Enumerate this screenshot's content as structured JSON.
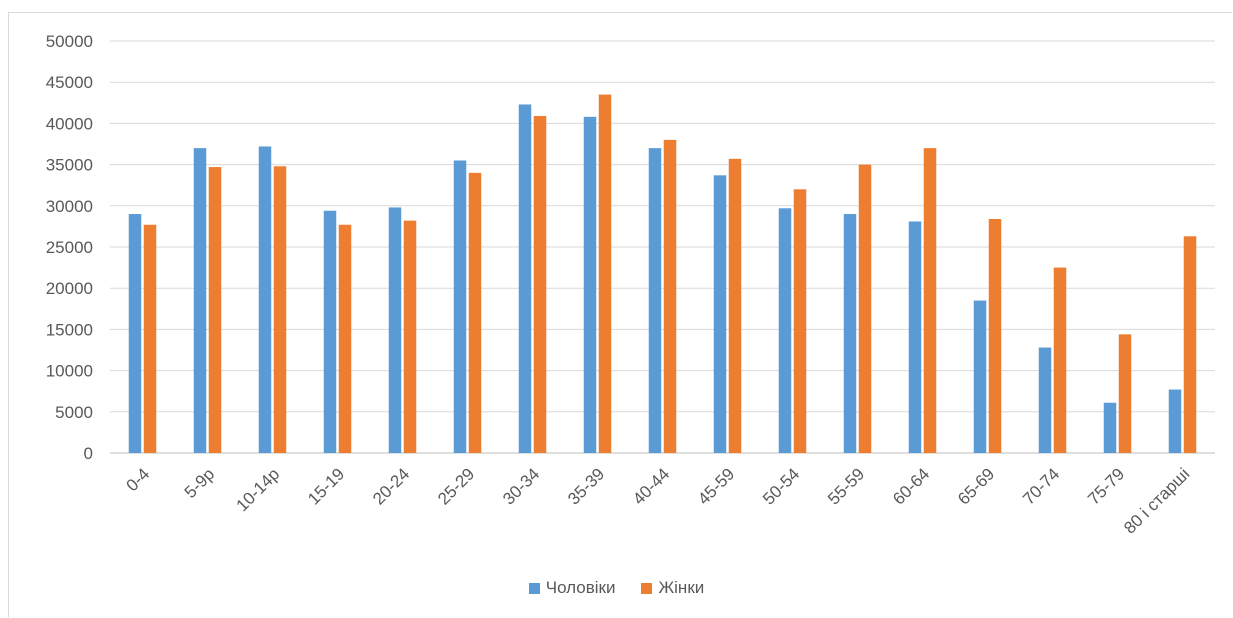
{
  "chart_data": {
    "type": "bar",
    "categories": [
      "0-4",
      "5-9р",
      "10-14р",
      "15-19",
      "20-24",
      "25-29",
      "30-34",
      "35-39",
      "40-44",
      "45-59",
      "50-54",
      "55-59",
      "60-64",
      "65-69",
      "70-74",
      "75-79",
      "80 і старші"
    ],
    "series": [
      {
        "name": "Чоловіки",
        "color": "#5b9bd5",
        "values": [
          29000,
          37000,
          37200,
          29400,
          29800,
          35500,
          42300,
          40800,
          37000,
          33700,
          29700,
          29000,
          28100,
          18500,
          12800,
          6100,
          7700
        ]
      },
      {
        "name": "Жінки",
        "color": "#ed7d31",
        "values": [
          27700,
          34700,
          34800,
          27700,
          28200,
          34000,
          40900,
          43500,
          38000,
          35700,
          32000,
          35000,
          37000,
          28400,
          22500,
          14400,
          26300
        ]
      }
    ],
    "yticks": [
      "0",
      "5000",
      "10000",
      "15000",
      "20000",
      "25000",
      "30000",
      "35000",
      "40000",
      "45000",
      "50000"
    ],
    "ylim": [
      0,
      50000
    ],
    "grid": true,
    "legend_position": "bottom"
  }
}
